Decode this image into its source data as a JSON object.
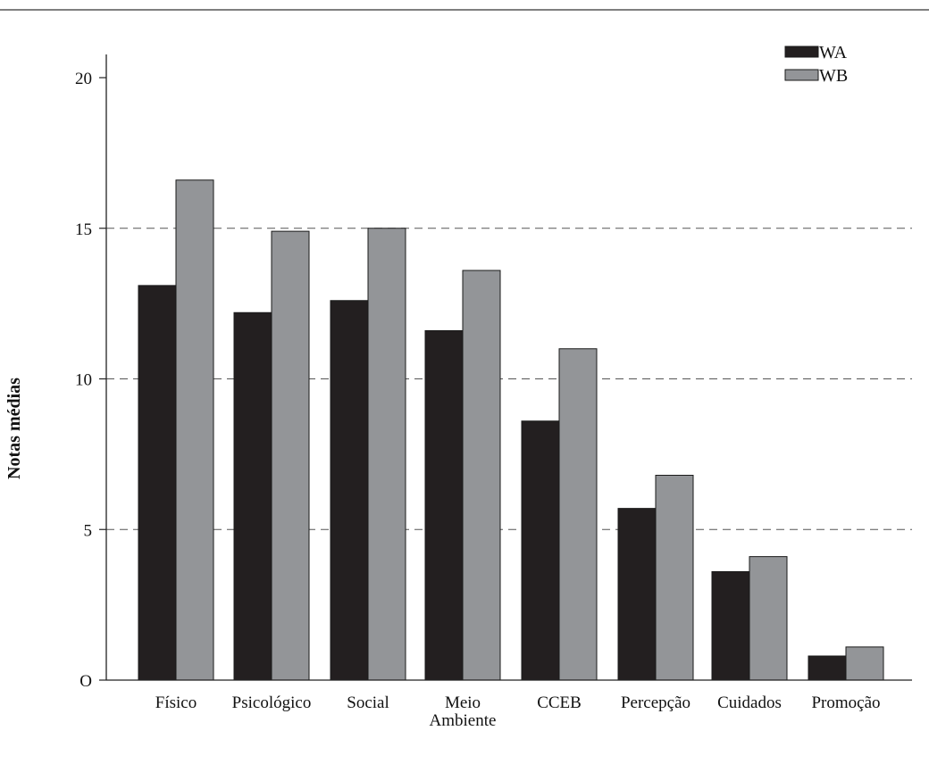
{
  "chart_data": {
    "type": "bar",
    "title": "",
    "ylabel": "Notas médias",
    "xlabel": "",
    "ylim": [
      0,
      20
    ],
    "yticks": [
      0,
      5,
      10,
      15,
      20
    ],
    "ytick_labels": [
      "O",
      "5",
      "10",
      "15",
      "20"
    ],
    "gridlines": [
      5,
      10,
      15
    ],
    "grid": "dashed horizontal",
    "legend_position": "top-right",
    "categories": [
      [
        "Físico"
      ],
      [
        "Psicológico"
      ],
      [
        "Social"
      ],
      [
        "Meio",
        "Ambiente"
      ],
      [
        "CCEB"
      ],
      [
        "Percepção"
      ],
      [
        "Cuidados"
      ],
      [
        "Promoção"
      ]
    ],
    "series": [
      {
        "name": "WA",
        "color": "#231f20",
        "values": [
          13.1,
          12.2,
          12.6,
          11.6,
          8.6,
          5.7,
          3.6,
          0.8
        ]
      },
      {
        "name": "WB",
        "color": "#939598",
        "values": [
          16.6,
          14.9,
          15.0,
          13.6,
          11.0,
          6.8,
          4.1,
          1.1
        ]
      }
    ]
  }
}
